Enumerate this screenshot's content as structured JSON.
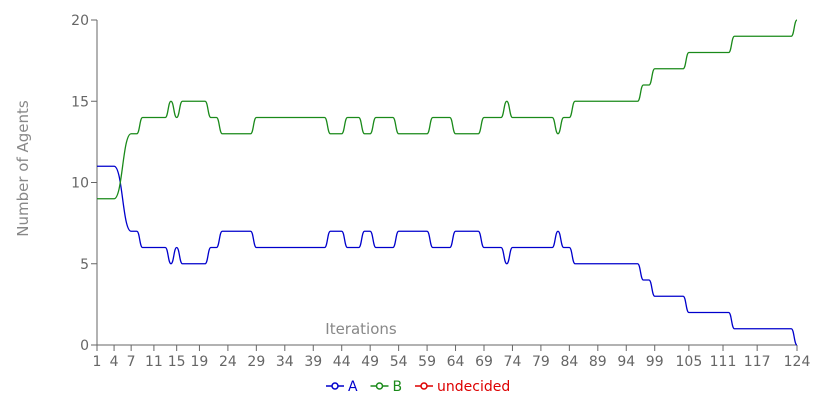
{
  "chart_data": {
    "type": "line",
    "xlabel": "Iterations",
    "ylabel": "Number of Agents",
    "ylim": [
      0,
      20
    ],
    "xlim": [
      1,
      124
    ],
    "yticks": [
      0,
      5,
      10,
      15,
      20
    ],
    "xticks": [
      1,
      4,
      7,
      11,
      15,
      19,
      24,
      29,
      34,
      39,
      44,
      49,
      54,
      59,
      64,
      69,
      74,
      79,
      84,
      89,
      94,
      99,
      105,
      111,
      117,
      124
    ],
    "legend_position": "bottom-center",
    "grid": false,
    "series": [
      {
        "name": "A",
        "color": "#0000cc",
        "points": [
          [
            1,
            11
          ],
          [
            3,
            11
          ],
          [
            4,
            11
          ],
          [
            7,
            7
          ],
          [
            8,
            7
          ],
          [
            9,
            6
          ],
          [
            13,
            6
          ],
          [
            14,
            5
          ],
          [
            15,
            6
          ],
          [
            16,
            5
          ],
          [
            20,
            5
          ],
          [
            21,
            6
          ],
          [
            22,
            6
          ],
          [
            23,
            7
          ],
          [
            28,
            7
          ],
          [
            29,
            6
          ],
          [
            41,
            6
          ],
          [
            42,
            7
          ],
          [
            44,
            7
          ],
          [
            45,
            6
          ],
          [
            47,
            6
          ],
          [
            48,
            7
          ],
          [
            49,
            7
          ],
          [
            50,
            6
          ],
          [
            53,
            6
          ],
          [
            54,
            7
          ],
          [
            59,
            7
          ],
          [
            60,
            6
          ],
          [
            63,
            6
          ],
          [
            64,
            7
          ],
          [
            68,
            7
          ],
          [
            69,
            6
          ],
          [
            72,
            6
          ],
          [
            73,
            5
          ],
          [
            74,
            6
          ],
          [
            81,
            6
          ],
          [
            82,
            7
          ],
          [
            83,
            6
          ],
          [
            84,
            6
          ],
          [
            85,
            5
          ],
          [
            96,
            5
          ],
          [
            97,
            4
          ],
          [
            98,
            4
          ],
          [
            99,
            3
          ],
          [
            104,
            3
          ],
          [
            105,
            2
          ],
          [
            112,
            2
          ],
          [
            113,
            1
          ],
          [
            123,
            1
          ],
          [
            124,
            0
          ]
        ]
      },
      {
        "name": "B",
        "color": "#1a8a1a",
        "points": [
          [
            1,
            9
          ],
          [
            3,
            9
          ],
          [
            4,
            9
          ],
          [
            7,
            13
          ],
          [
            8,
            13
          ],
          [
            9,
            14
          ],
          [
            13,
            14
          ],
          [
            14,
            15
          ],
          [
            15,
            14
          ],
          [
            16,
            15
          ],
          [
            20,
            15
          ],
          [
            21,
            14
          ],
          [
            22,
            14
          ],
          [
            23,
            13
          ],
          [
            28,
            13
          ],
          [
            29,
            14
          ],
          [
            41,
            14
          ],
          [
            42,
            13
          ],
          [
            44,
            13
          ],
          [
            45,
            14
          ],
          [
            47,
            14
          ],
          [
            48,
            13
          ],
          [
            49,
            13
          ],
          [
            50,
            14
          ],
          [
            53,
            14
          ],
          [
            54,
            13
          ],
          [
            59,
            13
          ],
          [
            60,
            14
          ],
          [
            63,
            14
          ],
          [
            64,
            13
          ],
          [
            68,
            13
          ],
          [
            69,
            14
          ],
          [
            72,
            14
          ],
          [
            73,
            15
          ],
          [
            74,
            14
          ],
          [
            81,
            14
          ],
          [
            82,
            13
          ],
          [
            83,
            14
          ],
          [
            84,
            14
          ],
          [
            85,
            15
          ],
          [
            96,
            15
          ],
          [
            97,
            16
          ],
          [
            98,
            16
          ],
          [
            99,
            17
          ],
          [
            104,
            17
          ],
          [
            105,
            18
          ],
          [
            112,
            18
          ],
          [
            113,
            19
          ],
          [
            123,
            19
          ],
          [
            124,
            20
          ]
        ]
      },
      {
        "name": "undecided",
        "color": "#dd0000",
        "points": []
      }
    ]
  }
}
